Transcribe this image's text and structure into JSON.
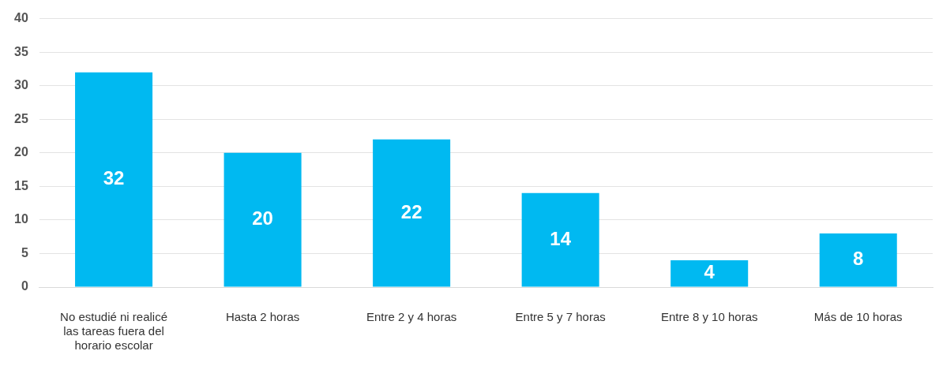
{
  "chart_data": {
    "type": "bar",
    "categories": [
      "No estudié ni realicé las tareas fuera del horario escolar",
      "Hasta 2 horas",
      "Entre 2 y 4 horas",
      "Entre 5 y 7 horas",
      "Entre 8 y 10 horas",
      "Más de 10 horas"
    ],
    "values": [
      32,
      20,
      22,
      14,
      4,
      8
    ],
    "color": "#00b9f1",
    "ylim": [
      0,
      40
    ],
    "yticks": [
      0,
      5,
      10,
      15,
      20,
      25,
      30,
      35,
      40
    ],
    "grid": "y",
    "data_labels": true,
    "legend": false
  }
}
